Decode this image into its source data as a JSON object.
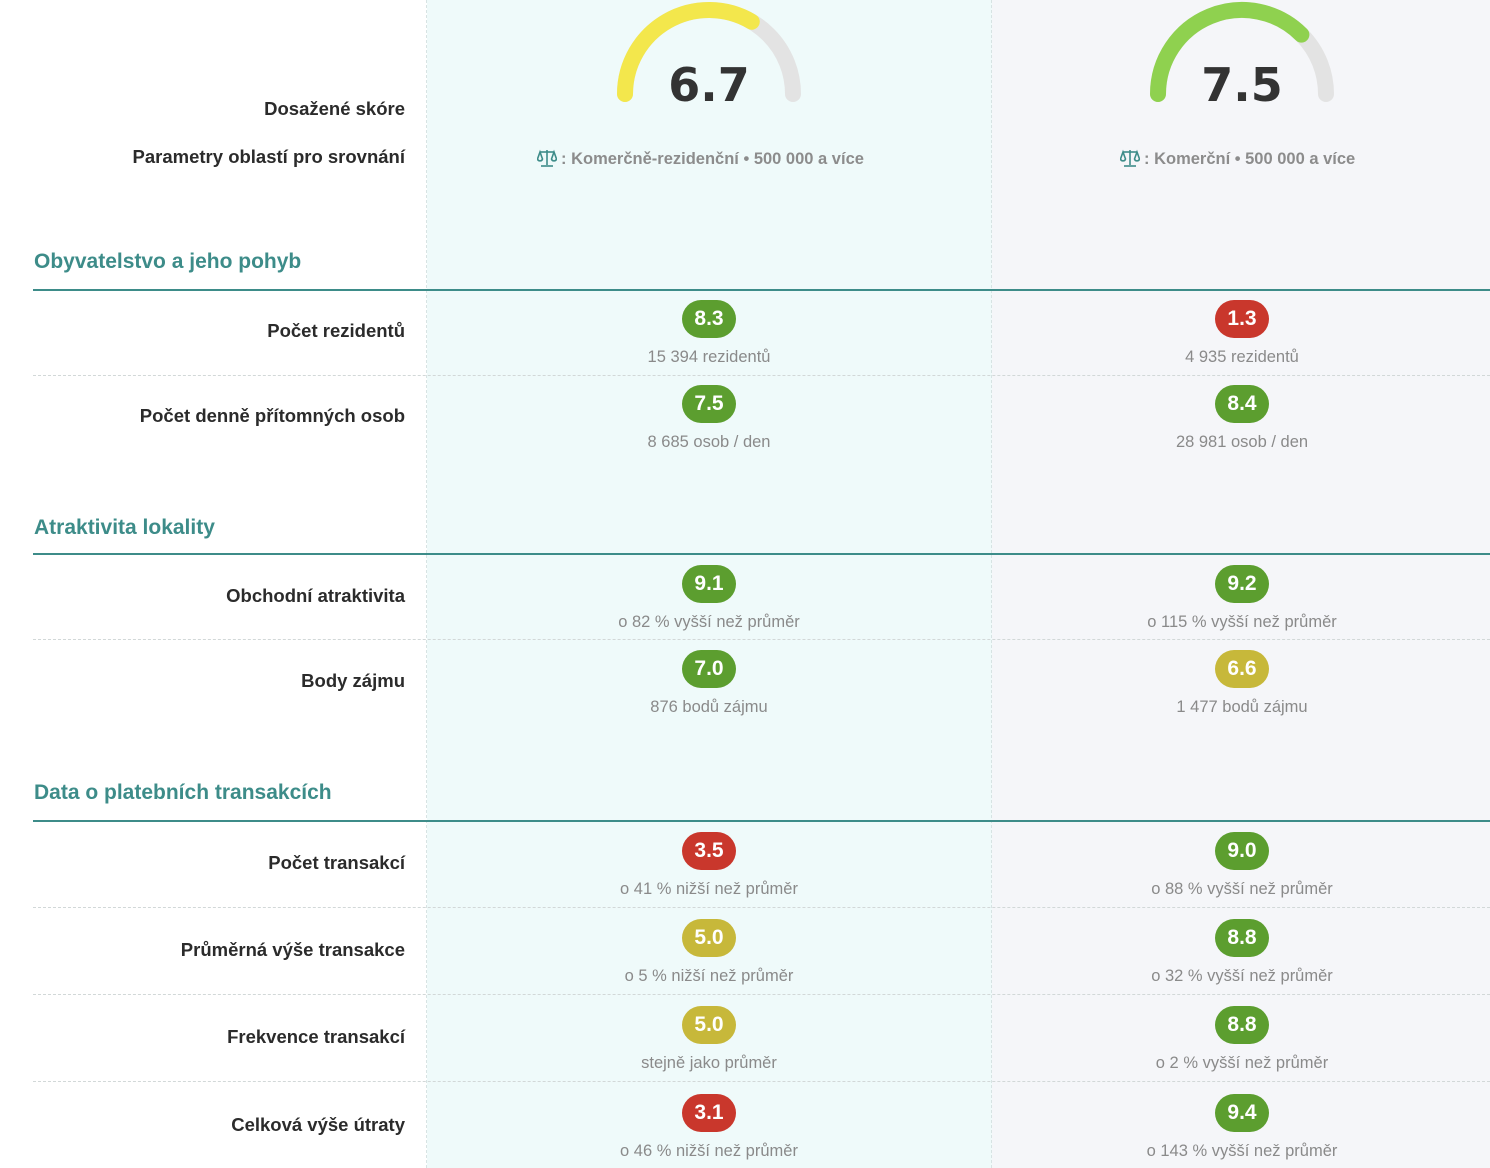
{
  "colors": {
    "accent": "#3d8c89",
    "green": "#5c9e2f",
    "red": "#c9372c",
    "yellow_green": "#c7b83a",
    "gauge_yellow": "#f3e74c",
    "gauge_green": "#8fd14f",
    "gauge_track": "#e3e3e3"
  },
  "header": {
    "score_label": "Dosažené skóre",
    "params_label": "Parametry oblastí pro srovnání"
  },
  "locations": [
    {
      "score": "6.7",
      "score_value": 6.7,
      "params": ": Komerčně-rezidenční • 500 000 a více",
      "icon": "scale-icon"
    },
    {
      "score": "7.5",
      "score_value": 7.5,
      "params": ": Komerční • 500 000 a více",
      "icon": "scale-icon"
    }
  ],
  "sections": [
    {
      "title": "Obyvatelstvo a jeho pohyb",
      "rows": [
        {
          "label": "Počet rezidentů",
          "cells": [
            {
              "score": "8.3",
              "level": "green",
              "detail": "15 394 rezidentů"
            },
            {
              "score": "1.3",
              "level": "red",
              "detail": "4 935 rezidentů"
            }
          ]
        },
        {
          "label": "Počet denně přítomných osob",
          "cells": [
            {
              "score": "7.5",
              "level": "green",
              "detail": "8 685 osob / den"
            },
            {
              "score": "8.4",
              "level": "green",
              "detail": "28 981 osob / den"
            }
          ]
        }
      ]
    },
    {
      "title": "Atraktivita lokality",
      "rows": [
        {
          "label": "Obchodní atraktivita",
          "cells": [
            {
              "score": "9.1",
              "level": "green",
              "detail": "o 82 % vyšší než průměr"
            },
            {
              "score": "9.2",
              "level": "green",
              "detail": "o 115 % vyšší než průměr"
            }
          ]
        },
        {
          "label": "Body zájmu",
          "cells": [
            {
              "score": "7.0",
              "level": "green",
              "detail": "876 bodů zájmu"
            },
            {
              "score": "6.6",
              "level": "yellow_green",
              "detail": "1 477 bodů zájmu"
            }
          ]
        }
      ]
    },
    {
      "title": "Data o platebních transakcích",
      "rows": [
        {
          "label": "Počet transakcí",
          "cells": [
            {
              "score": "3.5",
              "level": "red",
              "detail": "o 41 % nižší než průměr"
            },
            {
              "score": "9.0",
              "level": "green",
              "detail": "o 88 % vyšší než průměr"
            }
          ]
        },
        {
          "label": "Průměrná výše transakce",
          "cells": [
            {
              "score": "5.0",
              "level": "yellow_green",
              "detail": "o 5 % nižší než průměr"
            },
            {
              "score": "8.8",
              "level": "green",
              "detail": "o 32 % vyšší než průměr"
            }
          ]
        },
        {
          "label": "Frekvence transakcí",
          "cells": [
            {
              "score": "5.0",
              "level": "yellow_green",
              "detail": "stejně jako průměr"
            },
            {
              "score": "8.8",
              "level": "green",
              "detail": "o 2 % vyšší než průměr"
            }
          ]
        },
        {
          "label": "Celková výše útraty",
          "cells": [
            {
              "score": "3.1",
              "level": "red",
              "detail": "o 46 % nižší než průměr"
            },
            {
              "score": "9.4",
              "level": "green",
              "detail": "o 143 % vyšší než průměr"
            }
          ]
        }
      ]
    }
  ]
}
